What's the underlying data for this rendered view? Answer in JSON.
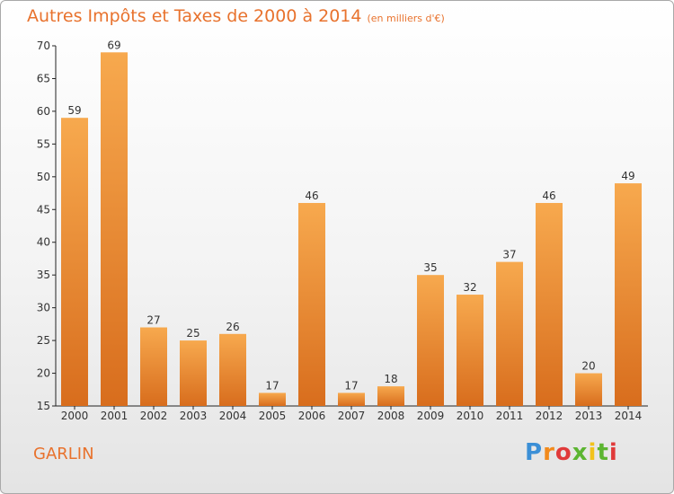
{
  "title": "Autres Impôts et Taxes de 2000 à 2014",
  "subtitle": "(en milliers d'€)",
  "commune": "GARLIN",
  "logo_text": "Proxiti",
  "colors": {
    "title": "#e8722d",
    "bar_top": "#f7a94e",
    "bar_bottom": "#d86d1d"
  },
  "chart_data": {
    "type": "bar",
    "title": "Autres Impôts et Taxes de 2000 à 2014",
    "subtitle": "(en milliers d'€)",
    "categories": [
      "2000",
      "2001",
      "2002",
      "2003",
      "2004",
      "2005",
      "2006",
      "2007",
      "2008",
      "2009",
      "2010",
      "2011",
      "2012",
      "2013",
      "2014"
    ],
    "values": [
      59,
      69,
      27,
      25,
      26,
      17,
      46,
      17,
      18,
      35,
      32,
      37,
      46,
      20,
      49
    ],
    "ylim": [
      15,
      70
    ],
    "yticks": [
      15,
      20,
      25,
      30,
      35,
      40,
      45,
      50,
      55,
      60,
      65,
      70
    ],
    "grid": false,
    "data_labels": true
  }
}
